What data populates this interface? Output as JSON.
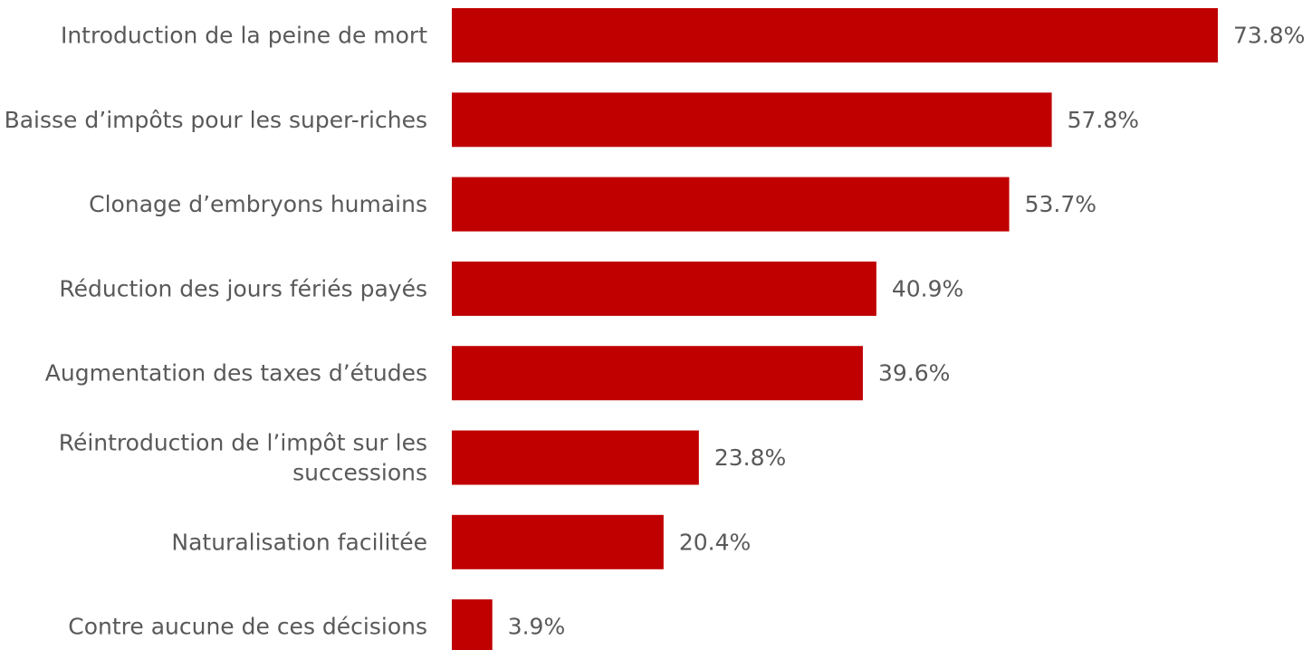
{
  "chart_data": {
    "type": "bar",
    "orientation": "horizontal",
    "categories": [
      [
        "Introduction de la peine de mort"
      ],
      [
        "Baisse d’impôts pour les super-riches"
      ],
      [
        "Clonage d’embryons humains"
      ],
      [
        "Réduction des jours fériés payés"
      ],
      [
        "Augmentation des taxes d’études"
      ],
      [
        "Réintroduction de l’impôt sur les",
        "successions"
      ],
      [
        "Naturalisation facilitée"
      ],
      [
        "Contre aucune de ces décisions"
      ]
    ],
    "values": [
      73.8,
      57.8,
      53.7,
      40.9,
      39.6,
      23.8,
      20.4,
      3.9
    ],
    "value_labels": [
      "73.8%",
      "57.8%",
      "53.7%",
      "40.9%",
      "39.6%",
      "23.8%",
      "20.4%",
      "3.9%"
    ],
    "title": "",
    "xlabel": "",
    "ylabel": "",
    "xlim": [
      0,
      73.8
    ],
    "grid": false,
    "legend": "none",
    "bar_color": "#c00000",
    "label_color": "#595959"
  }
}
